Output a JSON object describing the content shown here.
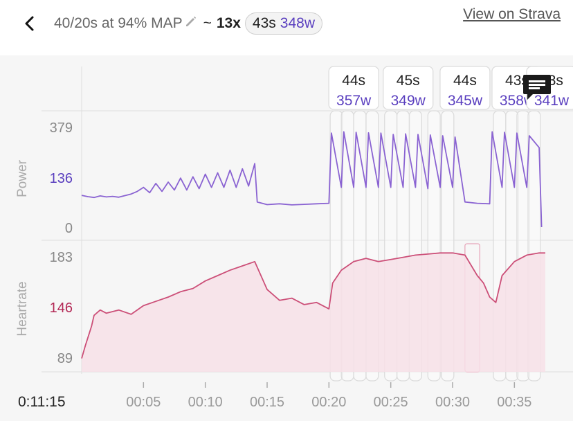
{
  "header": {
    "title": "40/20s at 94% MAP",
    "tilde": "~",
    "count": "13x",
    "summary_time": "43s",
    "summary_power": "348w",
    "strava_link": "View on Strava"
  },
  "icons": {
    "back": "chevron-left-icon",
    "edit": "pencil-icon",
    "comment": "comment-icon"
  },
  "colors": {
    "power": "#8a63d2",
    "heartrate": "#cc4f78",
    "hr_fill": "#f7e1e7",
    "label_power": "#5a3fbf",
    "label_hr": "#b32855"
  },
  "chart_data": [
    {
      "type": "line",
      "title": "",
      "ylabel": "Power",
      "yticks": [
        "379",
        "136",
        "0"
      ],
      "highlight_tick": "136",
      "ylim": [
        0,
        379
      ],
      "xlim": [
        0,
        37.5
      ],
      "x_unit": "minutes",
      "x": [
        0,
        0.5,
        1,
        1.5,
        2,
        2.5,
        3,
        3.5,
        4,
        4.5,
        5,
        5.5,
        6,
        6.5,
        7,
        7.5,
        8,
        8.5,
        9,
        9.5,
        10,
        10.5,
        11,
        11.5,
        12,
        12.5,
        13,
        13.5,
        14,
        14.2,
        15,
        16,
        17,
        18,
        19,
        20,
        20.2,
        21,
        21.2,
        22,
        22.2,
        23,
        23.2,
        24,
        24.2,
        25,
        25.2,
        26,
        26.2,
        27,
        27.2,
        28,
        28.2,
        29,
        29.2,
        30,
        30.2,
        31,
        32,
        33,
        33.2,
        34,
        34.2,
        35,
        35.2,
        36,
        36.2,
        37,
        37.2
      ],
      "values": [
        120,
        115,
        112,
        118,
        114,
        116,
        113,
        119,
        125,
        135,
        150,
        130,
        165,
        135,
        170,
        140,
        185,
        140,
        190,
        145,
        200,
        150,
        205,
        150,
        215,
        150,
        220,
        155,
        240,
        95,
        85,
        88,
        84,
        86,
        88,
        90,
        355,
        150,
        360,
        150,
        358,
        150,
        356,
        150,
        355,
        150,
        350,
        150,
        352,
        150,
        350,
        145,
        348,
        150,
        345,
        150,
        340,
        95,
        90,
        88,
        360,
        150,
        358,
        150,
        355,
        150,
        345,
        300,
        0
      ]
    },
    {
      "type": "area",
      "title": "",
      "ylabel": "Heartrate",
      "yticks": [
        "183",
        "146",
        "89"
      ],
      "highlight_tick": "146",
      "ylim": [
        89,
        183
      ],
      "xlim": [
        0,
        37.5
      ],
      "x_unit": "minutes",
      "x": [
        0,
        0.3,
        0.8,
        1,
        1.5,
        2,
        3,
        4,
        5,
        6,
        7,
        8,
        9,
        10,
        11,
        12,
        13,
        14,
        15,
        16,
        17,
        18,
        19,
        20,
        20.3,
        21,
        22,
        23,
        24,
        25,
        26,
        27,
        28,
        29,
        30,
        31,
        32,
        32.5,
        33,
        33.5,
        34,
        35,
        36,
        37,
        37.5
      ],
      "values": [
        88,
        100,
        118,
        128,
        133,
        130,
        133,
        129,
        137,
        141,
        145,
        150,
        153,
        160,
        165,
        170,
        174,
        178,
        152,
        142,
        144,
        138,
        140,
        134,
        158,
        170,
        178,
        181,
        178,
        180,
        182,
        184,
        185,
        186,
        186,
        184,
        165,
        158,
        145,
        140,
        165,
        178,
        184,
        186,
        186
      ]
    }
  ],
  "x_axis": {
    "ticks": [
      "00:05",
      "00:10",
      "00:15",
      "00:20",
      "00:25",
      "00:30",
      "00:35"
    ],
    "tick_values": [
      5,
      10,
      15,
      20,
      25,
      30,
      35
    ],
    "cursor_time": "0:11:15"
  },
  "interval_labels": [
    {
      "time": "44s",
      "power": "357w",
      "start": 20.1,
      "end": 21.1
    },
    {
      "time": "45s",
      "power": "349w",
      "start": 24.5,
      "end": 25.5
    },
    {
      "time": "44s",
      "power": "345w",
      "start": 29.1,
      "end": 30.1
    },
    {
      "time": "43s",
      "power": "358w",
      "start": 33.3,
      "end": 34.3
    },
    {
      "time": "43s",
      "power": "341w",
      "start": 36.1,
      "end": 37.1
    }
  ],
  "interval_bands": [
    [
      20.1,
      21.1
    ],
    [
      21.0,
      22.0
    ],
    [
      22.0,
      23.0
    ],
    [
      23.0,
      24.0
    ],
    [
      24.5,
      25.5
    ],
    [
      25.5,
      26.5
    ],
    [
      26.5,
      27.5
    ],
    [
      28.0,
      29.0
    ],
    [
      29.1,
      30.1
    ],
    [
      33.3,
      34.3
    ],
    [
      34.3,
      35.3
    ],
    [
      35.2,
      36.2
    ],
    [
      36.1,
      37.1
    ]
  ],
  "selected_band": [
    31.0,
    32.2
  ]
}
